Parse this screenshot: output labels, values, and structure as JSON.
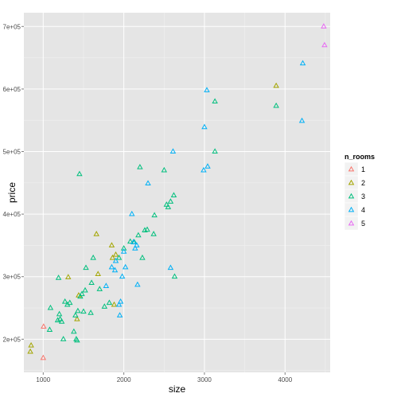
{
  "chart_data": {
    "type": "scatter",
    "title": "",
    "xlabel": "size",
    "ylabel": "price",
    "xlim": [
      760,
      4560
    ],
    "ylim": [
      147000,
      722000
    ],
    "x_ticks": [
      1000,
      2000,
      3000,
      4000
    ],
    "x_tick_labels": [
      "1000",
      "2000",
      "3000",
      "4000"
    ],
    "y_ticks": [
      200000,
      300000,
      400000,
      500000,
      600000,
      700000
    ],
    "y_tick_labels": [
      "2e+05",
      "3e+05",
      "4e+05",
      "5e+05",
      "6e+05",
      "7e+05"
    ],
    "grid": true,
    "legend": {
      "title": "n_rooms",
      "position": "right"
    },
    "series": [
      {
        "name": "1",
        "color": "#F8766D",
        "points": [
          [
            1000,
            170000
          ],
          [
            1005,
            220000
          ]
        ]
      },
      {
        "name": "2",
        "color": "#A3A500",
        "points": [
          [
            840,
            180000
          ],
          [
            850,
            190000
          ],
          [
            1310,
            299000
          ],
          [
            1420,
            232000
          ],
          [
            1440,
            270000
          ],
          [
            1660,
            368000
          ],
          [
            1680,
            304000
          ],
          [
            1850,
            350000
          ],
          [
            1860,
            330000
          ],
          [
            1880,
            255000
          ],
          [
            1900,
            335000
          ],
          [
            3890,
            605000
          ]
        ]
      },
      {
        "name": "3",
        "color": "#00BF7D",
        "points": [
          [
            1080,
            215000
          ],
          [
            1090,
            250000
          ],
          [
            1180,
            230000
          ],
          [
            1190,
            298000
          ],
          [
            1200,
            240000
          ],
          [
            1210,
            232000
          ],
          [
            1230,
            228000
          ],
          [
            1250,
            200000
          ],
          [
            1270,
            260000
          ],
          [
            1300,
            255000
          ],
          [
            1330,
            258000
          ],
          [
            1380,
            212000
          ],
          [
            1400,
            238000
          ],
          [
            1410,
            200000
          ],
          [
            1420,
            198000
          ],
          [
            1430,
            245000
          ],
          [
            1450,
            464000
          ],
          [
            1460,
            268000
          ],
          [
            1480,
            272000
          ],
          [
            1500,
            244000
          ],
          [
            1520,
            278000
          ],
          [
            1530,
            314000
          ],
          [
            1590,
            242000
          ],
          [
            1600,
            290000
          ],
          [
            1620,
            330000
          ],
          [
            1700,
            280000
          ],
          [
            1760,
            252000
          ],
          [
            1820,
            258000
          ],
          [
            1940,
            330000
          ],
          [
            2000,
            345000
          ],
          [
            2080,
            356000
          ],
          [
            2130,
            355000
          ],
          [
            2180,
            366000
          ],
          [
            2200,
            475000
          ],
          [
            2230,
            330000
          ],
          [
            2260,
            374000
          ],
          [
            2290,
            375000
          ],
          [
            2370,
            368000
          ],
          [
            2380,
            398000
          ],
          [
            2500,
            470000
          ],
          [
            2530,
            415000
          ],
          [
            2550,
            411000
          ],
          [
            2580,
            420000
          ],
          [
            2620,
            430000
          ],
          [
            2630,
            300000
          ],
          [
            3130,
            580000
          ],
          [
            3130,
            500000
          ],
          [
            3890,
            573000
          ]
        ]
      },
      {
        "name": "4",
        "color": "#00B0F6",
        "points": [
          [
            1780,
            285000
          ],
          [
            1850,
            315000
          ],
          [
            1890,
            310000
          ],
          [
            1900,
            325000
          ],
          [
            1940,
            255000
          ],
          [
            1950,
            238000
          ],
          [
            1960,
            260000
          ],
          [
            1980,
            300000
          ],
          [
            2000,
            340000
          ],
          [
            2020,
            315000
          ],
          [
            2100,
            400000
          ],
          [
            2120,
            355000
          ],
          [
            2140,
            345000
          ],
          [
            2160,
            350000
          ],
          [
            2170,
            287000
          ],
          [
            2300,
            449000
          ],
          [
            2580,
            314000
          ],
          [
            2610,
            500000
          ],
          [
            2990,
            470000
          ],
          [
            3000,
            539000
          ],
          [
            3030,
            598000
          ],
          [
            3040,
            476000
          ],
          [
            4210,
            549000
          ],
          [
            4220,
            641000
          ]
        ]
      },
      {
        "name": "5",
        "color": "#E76BF3",
        "points": [
          [
            4480,
            700000
          ],
          [
            4490,
            670000
          ]
        ]
      }
    ]
  }
}
